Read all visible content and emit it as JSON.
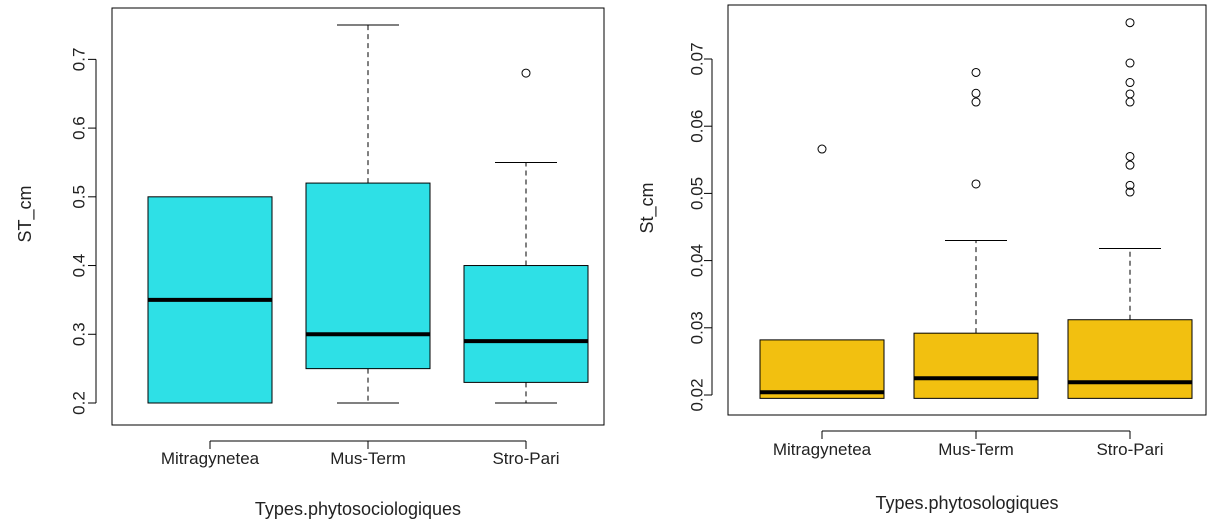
{
  "chart_data": [
    {
      "type": "boxplot",
      "xlabel": "Types.phytosociologiques",
      "ylabel": "ST_cm",
      "ylim": [
        0.18,
        0.77
      ],
      "yticks": [
        0.2,
        0.3,
        0.4,
        0.5,
        0.6,
        0.7
      ],
      "ytick_labels": [
        "0.2",
        "0.3",
        "0.4",
        "0.5",
        "0.6",
        "0.7"
      ],
      "categories": [
        "Mitragynetea",
        "Mus-Term",
        "Stro-Pari"
      ],
      "fill_color": "#2ee0e6",
      "boxes": [
        {
          "whisker_low": 0.2,
          "q1": 0.2,
          "median": 0.35,
          "q3": 0.5,
          "whisker_high": 0.5,
          "outliers": []
        },
        {
          "whisker_low": 0.2,
          "q1": 0.25,
          "median": 0.3,
          "q3": 0.52,
          "whisker_high": 0.75,
          "outliers": []
        },
        {
          "whisker_low": 0.2,
          "q1": 0.23,
          "median": 0.29,
          "q3": 0.4,
          "whisker_high": 0.55,
          "outliers": [
            0.68
          ]
        }
      ]
    },
    {
      "type": "boxplot",
      "xlabel": "Types.phytosologiques",
      "ylabel": "St_cm",
      "ylim": [
        0.0185,
        0.0765
      ],
      "yticks": [
        0.02,
        0.03,
        0.04,
        0.05,
        0.06,
        0.07
      ],
      "ytick_labels": [
        "0.02",
        "0.03",
        "0.04",
        "0.05",
        "0.06",
        "0.07"
      ],
      "categories": [
        "Mitragynetea",
        "Mus-Term",
        "Stro-Pari"
      ],
      "fill_color": "#f2c010",
      "boxes": [
        {
          "whisker_low": 0.0195,
          "q1": 0.0195,
          "median": 0.0204,
          "q3": 0.0282,
          "whisker_high": 0.0282,
          "outliers": [
            0.0566
          ]
        },
        {
          "whisker_low": 0.0195,
          "q1": 0.0195,
          "median": 0.0225,
          "q3": 0.0292,
          "whisker_high": 0.043,
          "outliers": [
            0.0514,
            0.0636,
            0.0649,
            0.068
          ]
        },
        {
          "whisker_low": 0.0195,
          "q1": 0.0195,
          "median": 0.0219,
          "q3": 0.0312,
          "whisker_high": 0.0418,
          "outliers": [
            0.0502,
            0.0512,
            0.0542,
            0.0555,
            0.0636,
            0.0648,
            0.0665,
            0.0694,
            0.0754
          ]
        }
      ]
    }
  ]
}
